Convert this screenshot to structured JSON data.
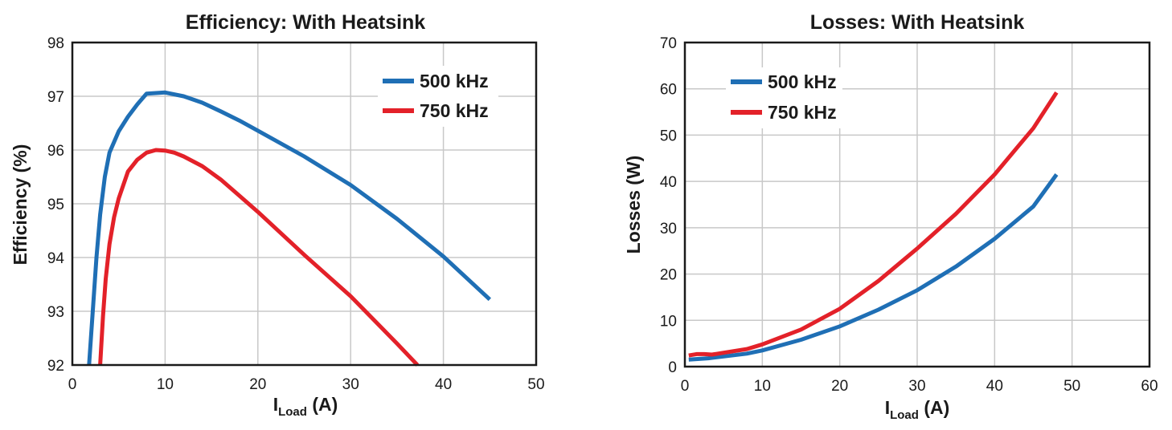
{
  "chart_data": [
    {
      "type": "line",
      "title": "Efficiency: With Heatsink",
      "xlabel_main": "I",
      "xlabel_sub": "Load",
      "xlabel_unit": " (A)",
      "ylabel": "Efficiency (%)",
      "xlim": [
        0,
        50
      ],
      "ylim": [
        92,
        98
      ],
      "xticks": [
        0,
        10,
        20,
        30,
        40,
        50
      ],
      "yticks": [
        92,
        93,
        94,
        95,
        96,
        97,
        98
      ],
      "grid": true,
      "legend_placement": "top-right",
      "series": [
        {
          "name": "500 kHz",
          "color": "#1f6fb5",
          "x": [
            1.8,
            2.2,
            2.6,
            3.0,
            3.5,
            4.0,
            5.0,
            6.0,
            7.0,
            8.0,
            9.0,
            10.0,
            12.0,
            14.0,
            16.0,
            18.0,
            20.0,
            25.0,
            30.0,
            35.0,
            40.0,
            45.0
          ],
          "y": [
            92.0,
            93.0,
            94.0,
            94.8,
            95.5,
            95.95,
            96.35,
            96.62,
            96.85,
            97.05,
            97.06,
            97.07,
            97.0,
            96.88,
            96.72,
            96.55,
            96.36,
            95.88,
            95.35,
            94.72,
            94.02,
            93.22
          ]
        },
        {
          "name": "750 kHz",
          "color": "#e32129",
          "x": [
            3.0,
            3.3,
            3.6,
            4.0,
            4.5,
            5.0,
            6.0,
            7.0,
            8.0,
            9.0,
            10.0,
            11.0,
            12.0,
            14.0,
            16.0,
            18.0,
            20.0,
            25.0,
            30.0,
            35.0,
            37.2
          ],
          "y": [
            92.0,
            92.9,
            93.6,
            94.25,
            94.75,
            95.1,
            95.6,
            95.82,
            95.95,
            96.0,
            95.99,
            95.95,
            95.88,
            95.7,
            95.45,
            95.15,
            94.85,
            94.05,
            93.28,
            92.4,
            92.0
          ]
        }
      ]
    },
    {
      "type": "line",
      "title": "Losses: With Heatsink",
      "xlabel_main": "I",
      "xlabel_sub": "Load",
      "xlabel_unit": " (A)",
      "ylabel": "Losses (W)",
      "xlim": [
        0,
        60
      ],
      "ylim": [
        0,
        70
      ],
      "xticks": [
        0,
        10,
        20,
        30,
        40,
        50,
        60
      ],
      "yticks": [
        0,
        10,
        20,
        30,
        40,
        50,
        60,
        70
      ],
      "grid": true,
      "legend_placement": "top-left",
      "series": [
        {
          "name": "500 kHz",
          "color": "#1f6fb5",
          "x": [
            0.5,
            3,
            5,
            8,
            10,
            15,
            20,
            25,
            30,
            35,
            40,
            45,
            48
          ],
          "y": [
            1.5,
            1.8,
            2.2,
            2.8,
            3.5,
            5.8,
            8.7,
            12.3,
            16.5,
            21.6,
            27.6,
            34.6,
            41.5
          ]
        },
        {
          "name": "750 kHz",
          "color": "#e32129",
          "x": [
            0.5,
            1.5,
            2.5,
            3.5,
            5,
            8,
            10,
            15,
            20,
            25,
            30,
            35,
            40,
            45,
            48
          ],
          "y": [
            2.4,
            2.7,
            2.7,
            2.6,
            3.0,
            3.8,
            4.8,
            8.0,
            12.5,
            18.5,
            25.5,
            33.0,
            41.5,
            51.5,
            59.2
          ]
        }
      ]
    }
  ]
}
